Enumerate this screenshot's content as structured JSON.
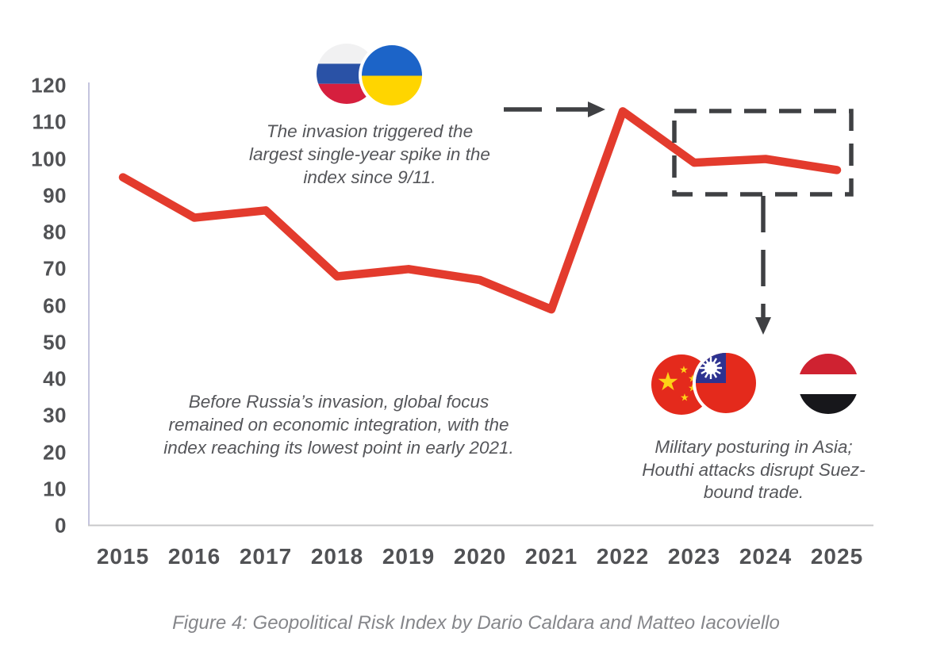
{
  "chart_data": {
    "type": "line",
    "title": "",
    "x": [
      "2015",
      "2016",
      "2017",
      "2018",
      "2019",
      "2020",
      "2021",
      "2022",
      "2023",
      "2024",
      "2025"
    ],
    "values": [
      95,
      84,
      86,
      68,
      70,
      67,
      59,
      113,
      99,
      100,
      97
    ],
    "ylim": [
      0,
      120
    ],
    "ytick_step": 10,
    "grid": false,
    "legend": "none",
    "line_color": "#e33b2d",
    "annotation_dash_color": "#3f4043",
    "y_axis_color": "#c5c5de",
    "x_axis_color": "#c8c8ca"
  },
  "annotations": {
    "invasion": {
      "lines": [
        "The invasion triggered the",
        "largest single-year spike in the",
        "index since 9/11."
      ],
      "flags": [
        "russia-flag",
        "ukraine-flag"
      ]
    },
    "before": {
      "lines": [
        "Before Russia’s invasion, global focus",
        "remained on economic integration, with the",
        "index reaching its lowest point in early 2021."
      ]
    },
    "asia": {
      "lines": [
        "Military posturing in Asia;",
        "Houthi attacks disrupt Suez-",
        "bound trade."
      ],
      "flags": [
        "china-flag",
        "taiwan-flag",
        "yemen-flag"
      ]
    }
  },
  "caption": "Figure 4: Geopolitical Risk Index by Dario Caldara and Matteo Iacoviello"
}
